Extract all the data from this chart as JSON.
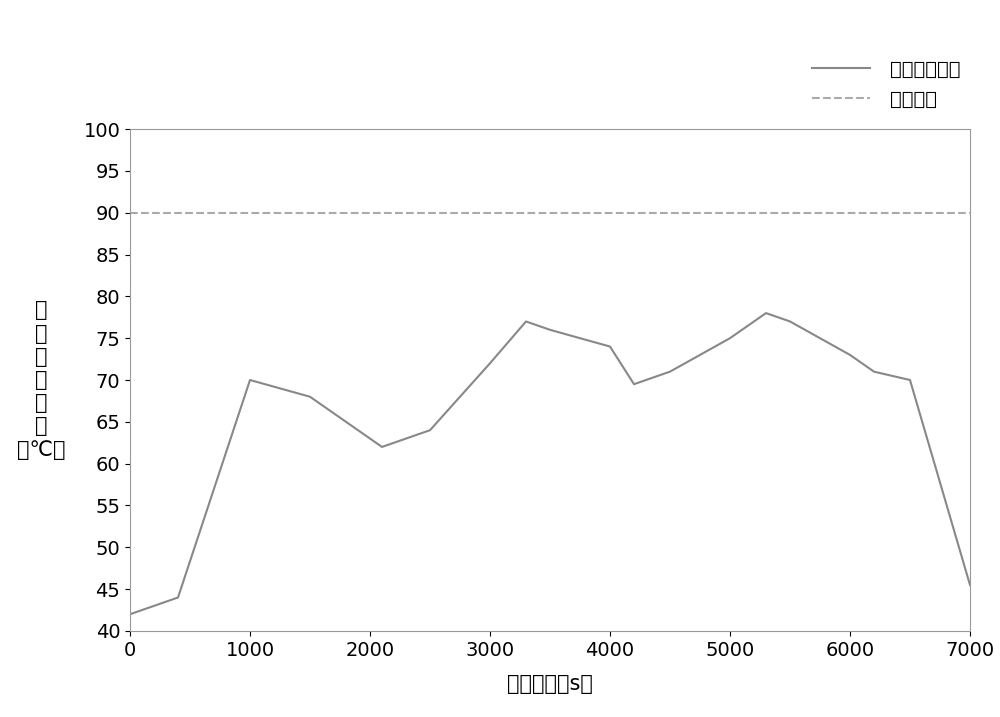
{
  "x_data": [
    0,
    200,
    400,
    1000,
    1500,
    2000,
    2100,
    2500,
    3000,
    3300,
    3500,
    4000,
    4200,
    4500,
    5000,
    5300,
    5500,
    6000,
    6200,
    6500,
    7000
  ],
  "y_data": [
    42,
    43,
    44,
    70,
    68,
    63,
    62,
    64,
    72,
    77,
    76,
    74,
    69.5,
    71,
    75,
    78,
    77,
    73,
    71,
    70,
    45.5
  ],
  "threshold": 90,
  "xlim": [
    0,
    7000
  ],
  "ylim": [
    40,
    100
  ],
  "xticks": [
    0,
    1000,
    2000,
    3000,
    4000,
    5000,
    6000,
    7000
  ],
  "yticks": [
    40,
    45,
    50,
    55,
    60,
    65,
    70,
    75,
    80,
    85,
    90,
    95,
    100
  ],
  "xlabel": "行驶时间（s）",
  "ylabel_lines": [
    "油",
    "冷",
    "电",
    "机",
    "温",
    "度",
    "（℃）"
  ],
  "legend_line": "温度变化曲线",
  "legend_dash": "过温阙値",
  "line_color": "#888888",
  "dash_color": "#aaaaaa",
  "background_color": "#ffffff",
  "font_size_tick": 14,
  "font_size_label": 15,
  "font_size_legend": 14,
  "font_size_ylabel": 15
}
